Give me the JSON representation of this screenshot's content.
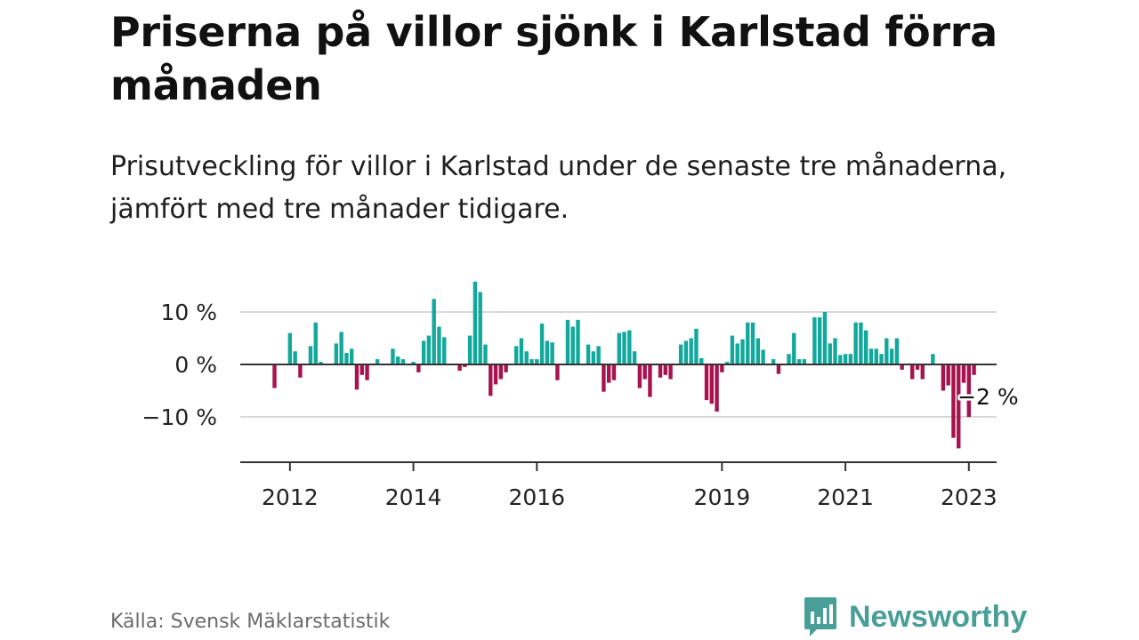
{
  "header": {
    "title": "Priserna på villor sjönk i Karlstad förra månaden",
    "subtitle": "Prisutveckling för villor i Karlstad under de senaste tre månaderna, jämfört med tre månader tidigare."
  },
  "footer": {
    "source": "Källa: Svensk Mäklarstatistik",
    "brand": "Newsworthy",
    "brand_icon": "newsworthy-logo-icon"
  },
  "chart_data": {
    "type": "bar",
    "title": "",
    "xlabel": "",
    "ylabel": "",
    "unit": "%",
    "ylim": [
      -18,
      17
    ],
    "y_ticks": [
      {
        "value": 10,
        "label": "10 %"
      },
      {
        "value": 0,
        "label": "0 %"
      },
      {
        "value": -10,
        "label": "−10 %"
      }
    ],
    "x_ticks": [
      "2012",
      "2014",
      "2016",
      "2019",
      "2021",
      "2023"
    ],
    "grid": true,
    "colors": {
      "positive": "#12a89b",
      "negative": "#a8124e",
      "grid": "#d9d9d9",
      "axis": "#333333"
    },
    "annotation": {
      "label": "−2 %",
      "value": -2,
      "date": "2023-03"
    },
    "start_month": "2011-10",
    "series": [
      {
        "values": [
          -4.5,
          null,
          null,
          6,
          2.5,
          -2.5,
          null,
          3.5,
          8,
          0.5,
          null,
          null,
          4,
          6.2,
          2.2,
          3,
          -4.8,
          -2,
          -3,
          null,
          1,
          null,
          null,
          3,
          1.5,
          1,
          null,
          0.5,
          -1.5,
          4.5,
          5.5,
          12.5,
          7.2,
          5.2,
          null,
          null,
          -1.2,
          -0.5,
          5.5,
          15.8,
          13.8,
          3.8,
          -6,
          -3.8,
          -2.8,
          -1.5,
          null,
          3.5,
          5,
          2.5,
          1,
          1,
          7.8,
          4.5,
          4.2,
          -3,
          null,
          8.5,
          7.2,
          8.5,
          null,
          3.8,
          2.5,
          3.5,
          -5.2,
          -3.5,
          -3,
          6,
          6.2,
          6.5,
          2.5,
          -4.5,
          -2.8,
          -6.2,
          null,
          -2.5,
          -2,
          -2.8,
          null,
          3.8,
          4.5,
          5,
          6.8,
          1.2,
          -6.8,
          -7.5,
          -9,
          -1.5,
          0.5,
          5.5,
          4,
          4.8,
          8,
          8,
          5,
          2.8,
          null,
          1,
          -1.8,
          null,
          2,
          6,
          1,
          1,
          null,
          9,
          9,
          10,
          4,
          5,
          1.8,
          2,
          2,
          8,
          8,
          6.5,
          3,
          3,
          2,
          5,
          3,
          5,
          -1,
          null,
          -2.8,
          -1,
          -2.8,
          null,
          2,
          null,
          -5,
          -4,
          -14,
          -16,
          -3.5,
          -10,
          -2
        ]
      }
    ]
  }
}
